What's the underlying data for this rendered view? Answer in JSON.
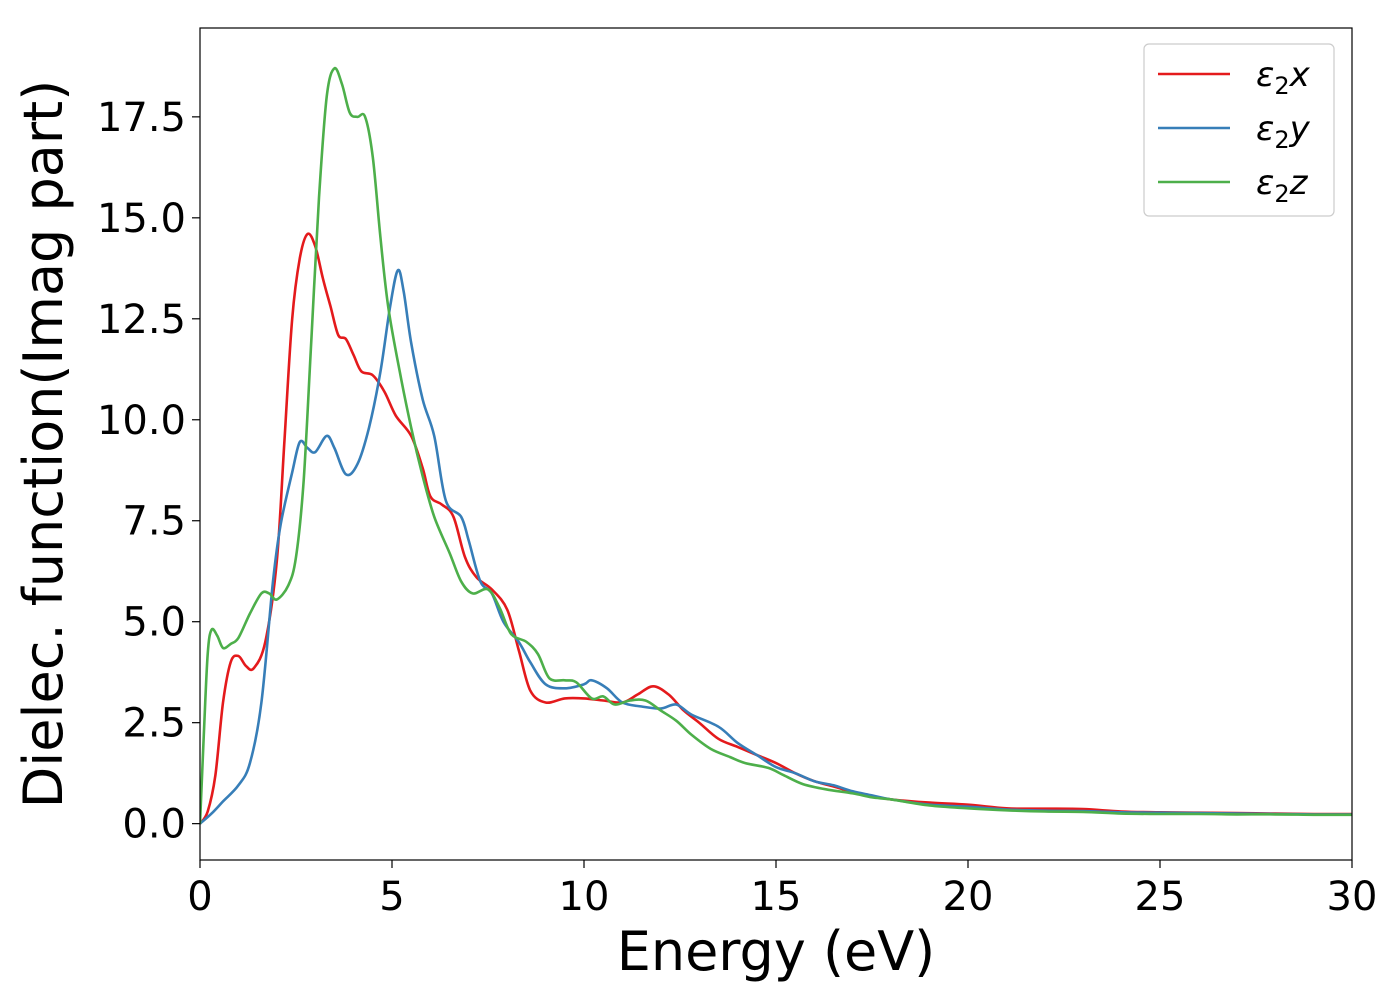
{
  "chart_data": {
    "type": "line",
    "xlabel": "Energy (eV)",
    "ylabel": "Dielec. function(Imag part)",
    "xlim": [
      0,
      30
    ],
    "ylim": [
      -0.9,
      19.7
    ],
    "xticks": [
      0,
      5,
      10,
      15,
      20,
      25,
      30
    ],
    "xtick_labels": [
      "0",
      "5",
      "10",
      "15",
      "20",
      "25",
      "30"
    ],
    "yticks": [
      0.0,
      2.5,
      5.0,
      7.5,
      10.0,
      12.5,
      15.0,
      17.5
    ],
    "ytick_labels": [
      "0.0",
      "2.5",
      "5.0",
      "7.5",
      "10.0",
      "12.5",
      "15.0",
      "17.5"
    ],
    "grid": false,
    "legend_position": "top-right",
    "series": [
      {
        "name": "ε₂x",
        "legend_base": "ε",
        "legend_sub": "2",
        "legend_suffix": "x",
        "color": "#e41a1c",
        "points": [
          [
            0,
            0.0
          ],
          [
            0.2,
            0.3
          ],
          [
            0.4,
            1.2
          ],
          [
            0.6,
            3.0
          ],
          [
            0.8,
            4.0
          ],
          [
            1.0,
            4.15
          ],
          [
            1.2,
            3.9
          ],
          [
            1.4,
            3.85
          ],
          [
            1.7,
            4.5
          ],
          [
            2.0,
            6.5
          ],
          [
            2.2,
            9.5
          ],
          [
            2.4,
            12.5
          ],
          [
            2.6,
            14.0
          ],
          [
            2.8,
            14.6
          ],
          [
            3.0,
            14.3
          ],
          [
            3.2,
            13.5
          ],
          [
            3.4,
            12.8
          ],
          [
            3.6,
            12.1
          ],
          [
            3.8,
            12.0
          ],
          [
            4.0,
            11.6
          ],
          [
            4.2,
            11.2
          ],
          [
            4.5,
            11.1
          ],
          [
            4.8,
            10.7
          ],
          [
            5.1,
            10.1
          ],
          [
            5.5,
            9.6
          ],
          [
            5.8,
            8.8
          ],
          [
            6.0,
            8.1
          ],
          [
            6.3,
            7.9
          ],
          [
            6.6,
            7.6
          ],
          [
            6.9,
            6.6
          ],
          [
            7.2,
            6.1
          ],
          [
            7.6,
            5.8
          ],
          [
            8.0,
            5.3
          ],
          [
            8.3,
            4.3
          ],
          [
            8.6,
            3.3
          ],
          [
            9.0,
            3.0
          ],
          [
            9.5,
            3.1
          ],
          [
            10.0,
            3.1
          ],
          [
            10.5,
            3.05
          ],
          [
            11.0,
            3.0
          ],
          [
            11.4,
            3.2
          ],
          [
            11.8,
            3.4
          ],
          [
            12.2,
            3.2
          ],
          [
            12.6,
            2.8
          ],
          [
            13.0,
            2.5
          ],
          [
            13.5,
            2.1
          ],
          [
            14.0,
            1.9
          ],
          [
            14.5,
            1.7
          ],
          [
            15.0,
            1.5
          ],
          [
            15.5,
            1.25
          ],
          [
            16.0,
            1.05
          ],
          [
            16.5,
            0.92
          ],
          [
            17.0,
            0.78
          ],
          [
            17.5,
            0.68
          ],
          [
            18.0,
            0.6
          ],
          [
            19.0,
            0.52
          ],
          [
            20.0,
            0.47
          ],
          [
            21.0,
            0.38
          ],
          [
            22.0,
            0.37
          ],
          [
            23.0,
            0.36
          ],
          [
            24.0,
            0.3
          ],
          [
            25.0,
            0.28
          ],
          [
            26.0,
            0.27
          ],
          [
            27.0,
            0.26
          ],
          [
            28.0,
            0.25
          ],
          [
            29.0,
            0.24
          ],
          [
            30.0,
            0.24
          ]
        ]
      },
      {
        "name": "ε₂y",
        "legend_base": "ε",
        "legend_sub": "2",
        "legend_suffix": "y",
        "color": "#377eb8",
        "points": [
          [
            0,
            0.0
          ],
          [
            0.3,
            0.25
          ],
          [
            0.6,
            0.55
          ],
          [
            1.0,
            0.95
          ],
          [
            1.3,
            1.5
          ],
          [
            1.6,
            3.0
          ],
          [
            1.9,
            6.0
          ],
          [
            2.1,
            7.4
          ],
          [
            2.4,
            8.7
          ],
          [
            2.6,
            9.45
          ],
          [
            2.8,
            9.3
          ],
          [
            3.0,
            9.2
          ],
          [
            3.3,
            9.6
          ],
          [
            3.5,
            9.3
          ],
          [
            3.8,
            8.65
          ],
          [
            4.1,
            8.9
          ],
          [
            4.4,
            9.8
          ],
          [
            4.7,
            11.2
          ],
          [
            4.95,
            12.8
          ],
          [
            5.15,
            13.7
          ],
          [
            5.3,
            13.2
          ],
          [
            5.5,
            11.9
          ],
          [
            5.8,
            10.5
          ],
          [
            6.1,
            9.6
          ],
          [
            6.4,
            8.0
          ],
          [
            6.8,
            7.6
          ],
          [
            7.0,
            7.0
          ],
          [
            7.3,
            6.0
          ],
          [
            7.6,
            5.7
          ],
          [
            7.9,
            5.0
          ],
          [
            8.3,
            4.5
          ],
          [
            8.6,
            4.0
          ],
          [
            9.0,
            3.45
          ],
          [
            9.5,
            3.35
          ],
          [
            10.0,
            3.45
          ],
          [
            10.2,
            3.55
          ],
          [
            10.6,
            3.35
          ],
          [
            11.0,
            3.0
          ],
          [
            11.5,
            2.9
          ],
          [
            12.0,
            2.85
          ],
          [
            12.4,
            2.95
          ],
          [
            12.8,
            2.7
          ],
          [
            13.5,
            2.4
          ],
          [
            14.0,
            2.0
          ],
          [
            14.5,
            1.7
          ],
          [
            15.0,
            1.4
          ],
          [
            15.5,
            1.25
          ],
          [
            16.0,
            1.05
          ],
          [
            16.5,
            0.95
          ],
          [
            17.0,
            0.8
          ],
          [
            17.5,
            0.7
          ],
          [
            18.0,
            0.6
          ],
          [
            19.0,
            0.47
          ],
          [
            20.0,
            0.42
          ],
          [
            21.0,
            0.35
          ],
          [
            22.0,
            0.32
          ],
          [
            23.0,
            0.31
          ],
          [
            24.0,
            0.28
          ],
          [
            25.0,
            0.27
          ],
          [
            26.0,
            0.26
          ],
          [
            27.0,
            0.25
          ],
          [
            28.0,
            0.24
          ],
          [
            29.0,
            0.23
          ],
          [
            30.0,
            0.23
          ]
        ]
      },
      {
        "name": "ε₂z",
        "legend_base": "ε",
        "legend_sub": "2",
        "legend_suffix": "z",
        "color": "#4daf4a",
        "points": [
          [
            0,
            0.0
          ],
          [
            0.1,
            2.2
          ],
          [
            0.2,
            4.2
          ],
          [
            0.3,
            4.8
          ],
          [
            0.45,
            4.65
          ],
          [
            0.6,
            4.35
          ],
          [
            0.8,
            4.45
          ],
          [
            1.0,
            4.6
          ],
          [
            1.3,
            5.2
          ],
          [
            1.6,
            5.7
          ],
          [
            1.8,
            5.7
          ],
          [
            2.0,
            5.55
          ],
          [
            2.3,
            5.9
          ],
          [
            2.5,
            6.6
          ],
          [
            2.7,
            8.5
          ],
          [
            2.9,
            12.0
          ],
          [
            3.1,
            15.5
          ],
          [
            3.3,
            18.0
          ],
          [
            3.5,
            18.7
          ],
          [
            3.7,
            18.3
          ],
          [
            3.9,
            17.6
          ],
          [
            4.1,
            17.5
          ],
          [
            4.3,
            17.5
          ],
          [
            4.5,
            16.5
          ],
          [
            4.7,
            14.5
          ],
          [
            4.9,
            12.8
          ],
          [
            5.2,
            11.2
          ],
          [
            5.5,
            9.8
          ],
          [
            5.8,
            8.6
          ],
          [
            6.1,
            7.6
          ],
          [
            6.5,
            6.7
          ],
          [
            6.8,
            6.0
          ],
          [
            7.1,
            5.7
          ],
          [
            7.5,
            5.8
          ],
          [
            7.8,
            5.35
          ],
          [
            8.1,
            4.7
          ],
          [
            8.5,
            4.5
          ],
          [
            8.8,
            4.2
          ],
          [
            9.1,
            3.6
          ],
          [
            9.5,
            3.55
          ],
          [
            9.8,
            3.5
          ],
          [
            10.2,
            3.1
          ],
          [
            10.5,
            3.15
          ],
          [
            10.8,
            2.95
          ],
          [
            11.2,
            3.05
          ],
          [
            11.6,
            3.05
          ],
          [
            12.0,
            2.8
          ],
          [
            12.4,
            2.55
          ],
          [
            12.8,
            2.2
          ],
          [
            13.3,
            1.85
          ],
          [
            13.8,
            1.65
          ],
          [
            14.2,
            1.5
          ],
          [
            14.8,
            1.38
          ],
          [
            15.2,
            1.2
          ],
          [
            15.7,
            0.98
          ],
          [
            16.3,
            0.85
          ],
          [
            17.0,
            0.75
          ],
          [
            17.5,
            0.65
          ],
          [
            18.0,
            0.6
          ],
          [
            19.0,
            0.45
          ],
          [
            20.0,
            0.38
          ],
          [
            21.0,
            0.33
          ],
          [
            22.0,
            0.3
          ],
          [
            23.0,
            0.29
          ],
          [
            24.0,
            0.25
          ],
          [
            25.0,
            0.24
          ],
          [
            26.0,
            0.24
          ],
          [
            27.0,
            0.23
          ],
          [
            28.0,
            0.23
          ],
          [
            29.0,
            0.22
          ],
          [
            30.0,
            0.22
          ]
        ]
      }
    ]
  }
}
